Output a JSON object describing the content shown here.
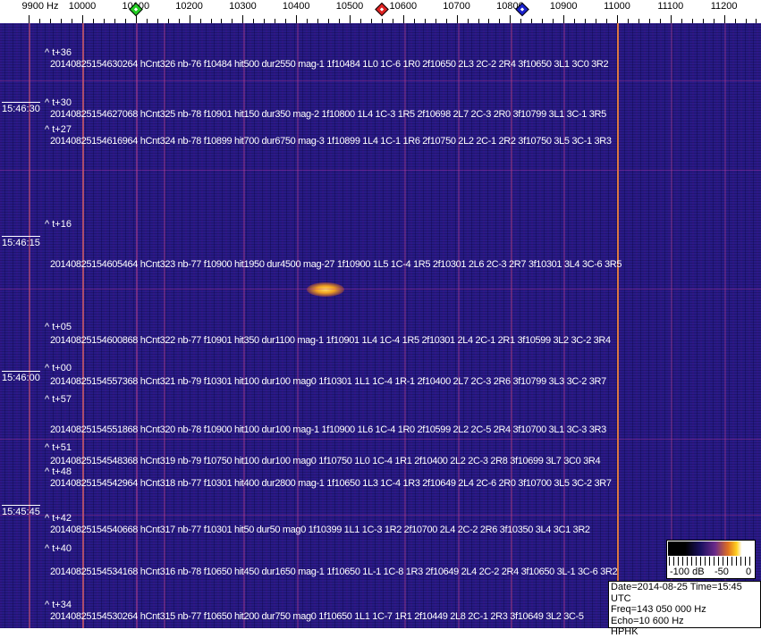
{
  "axis": {
    "unit_label": "9900 Hz",
    "ticks": [
      "10000",
      "10100",
      "10200",
      "10300",
      "10400",
      "10500",
      "10600",
      "10700",
      "10800",
      "10900",
      "11000",
      "11100",
      "11200"
    ],
    "markers": [
      {
        "color": "#22cc22",
        "freq_hz": 10100
      },
      {
        "color": "#dd2222",
        "freq_hz": 10560
      },
      {
        "color": "#1a22cc",
        "freq_hz": 10823
      }
    ]
  },
  "times": [
    "15:46:30",
    "15:46:15",
    "15:46:00",
    "15:45:45"
  ],
  "offsets": [
    "^ t+36",
    "^ t+30",
    "^ t+27",
    "^ t+16",
    "^ t+05",
    "^ t+00",
    "^ t+57",
    "^ t+51",
    "^ t+48",
    "^ t+42",
    "^ t+40",
    "^ t+34"
  ],
  "detections": [
    "20140825154630264 hCnt326 nb-76 f10484 hit500 dur2550 mag-1 1f10484 1L0 1C-6 1R0 2f10650 2L3 2C-2 2R4 3f10650 3L1 3C0 3R2",
    "20140825154627068 hCnt325 nb-78 f10901 hit150 dur350 mag-2 1f10800 1L4 1C-3 1R5 2f10698 2L7 2C-3 2R0 3f10799 3L1 3C-1 3R5",
    "20140825154616964 hCnt324 nb-78 f10899 hit700 dur6750 mag-3 1f10899 1L4 1C-1 1R6 2f10750 2L2 2C-1 2R2 3f10750 3L5 3C-1 3R3",
    "20140825154605464 hCnt323 nb-77 f10900 hit1950 dur4500 mag-27 1f10900 1L5 1C-4 1R5 2f10301 2L6 2C-3 2R7 3f10301 3L4 3C-6 3R5",
    "20140825154600868 hCnt322 nb-77 f10901 hit350 dur1100 mag-1 1f10901 1L4 1C-4 1R5 2f10301 2L4 2C-1 2R1 3f10599 3L2 3C-2 3R4",
    "20140825154557368 hCnt321 nb-79 f10301 hit100 dur100 mag0 1f10301 1L1 1C-4 1R-1 2f10400 2L7 2C-3 2R6 3f10799 3L3 3C-2 3R7",
    "20140825154551868 hCnt320 nb-78 f10900 hit100 dur100 mag-1 1f10900 1L6 1C-4 1R0 2f10599 2L2 2C-5 2R4 3f10700 3L1 3C-3 3R3",
    "20140825154548368 hCnt319 nb-79 f10750 hit100 dur100 mag0 1f10750 1L0 1C-4 1R1 2f10400 2L2 2C-3 2R8 3f10699 3L7 3C0 3R4",
    "20140825154542964 hCnt318 nb-77 f10301 hit400 dur2800 mag-1 1f10650 1L3 1C-4 1R3 2f10649 2L4 2C-6 2R0 3f10700 3L5 3C-2 3R7",
    "20140825154540668 hCnt317 nb-77 f10301 hit50 dur50 mag0 1f10399 1L1 1C-3 1R2 2f10700 2L4 2C-2 2R6 3f10350 3L4 3C1 3R2",
    "20140825154534168 hCnt316 nb-78 f10650 hit450 dur1650 mag-1 1f10650 1L-1 1C-8 1R3 2f10649 2L4 2C-2 2R4 3f10650 3L-1 3C-6 3R2",
    "20140825154530264 hCnt315 nb-77 f10650 hit200 dur750 mag0 1f10650 1L1 1C-7 1R1 2f10449 2L8 2C-1 2R3 3f10649 3L2 3C-5"
  ],
  "colorbar": {
    "labels": [
      "-100 dB",
      "-50",
      "0"
    ]
  },
  "info": {
    "date_time": "Date=2014-08-25 Time=15:45 UTC",
    "freq": "Freq=143 050 000 Hz",
    "echo": "Echo=10 600 Hz",
    "station": "HPHK"
  }
}
